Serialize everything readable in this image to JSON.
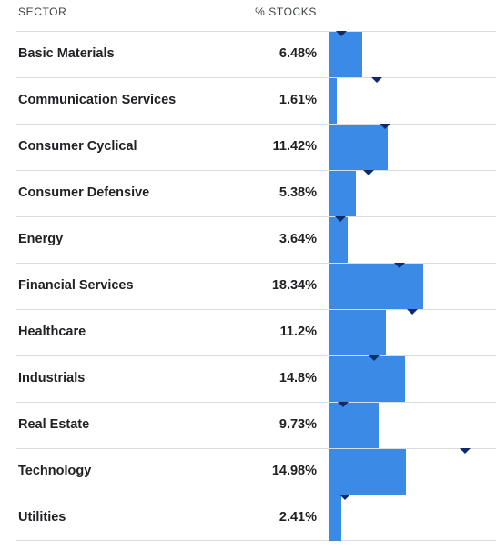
{
  "header": {
    "sector": "SECTOR",
    "pct_stocks": "% STOCKS"
  },
  "colors": {
    "bar": "#3b8ae6",
    "marker": "#0d2a6b",
    "divider": "#dadce0"
  },
  "chart_data": {
    "type": "bar",
    "orientation": "horizontal",
    "categories": [
      "Basic Materials",
      "Communication Services",
      "Consumer Cyclical",
      "Consumer Defensive",
      "Energy",
      "Financial Services",
      "Healthcare",
      "Industrials",
      "Real Estate",
      "Technology",
      "Utilities"
    ],
    "value_labels": [
      "6.48%",
      "1.61%",
      "11.42%",
      "5.38%",
      "3.64%",
      "18.34%",
      "11.2%",
      "14.8%",
      "9.73%",
      "14.98%",
      "2.41%"
    ],
    "values": [
      6.48,
      1.61,
      11.42,
      5.38,
      3.64,
      18.34,
      11.2,
      14.8,
      9.73,
      14.98,
      2.41
    ],
    "benchmark_markers": [
      2.4,
      9.3,
      10.9,
      7.8,
      2.3,
      13.7,
      16.2,
      8.9,
      2.9,
      26.5,
      3.2
    ],
    "xlim": [
      0,
      30
    ],
    "grid": false,
    "legend": "none"
  }
}
